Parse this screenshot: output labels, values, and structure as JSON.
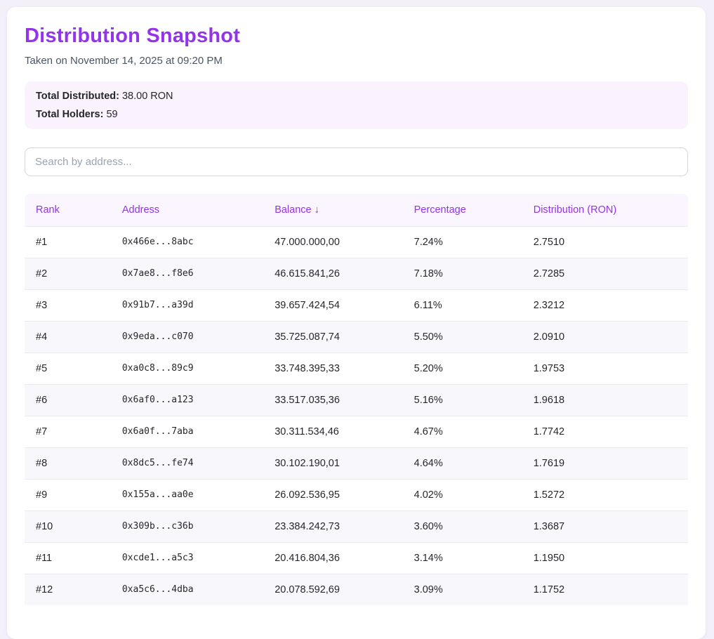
{
  "page": {
    "title": "Distribution Snapshot",
    "subtitle": "Taken on November 14, 2025 at 09:20 PM"
  },
  "summary": {
    "total_distributed_label": "Total Distributed:",
    "total_distributed_value": "38.00 RON",
    "total_holders_label": "Total Holders:",
    "total_holders_value": "59"
  },
  "search": {
    "placeholder": "Search by address...",
    "value": ""
  },
  "table": {
    "columns": [
      "Rank",
      "Address",
      "Balance ↓",
      "Percentage",
      "Distribution (RON)"
    ],
    "sorted_column": "Balance",
    "sort_direction": "descending",
    "rows": [
      {
        "rank": "#1",
        "address": "0x466e...8abc",
        "balance": "47.000.000,00",
        "percentage": "7.24%",
        "distribution": "2.7510"
      },
      {
        "rank": "#2",
        "address": "0x7ae8...f8e6",
        "balance": "46.615.841,26",
        "percentage": "7.18%",
        "distribution": "2.7285"
      },
      {
        "rank": "#3",
        "address": "0x91b7...a39d",
        "balance": "39.657.424,54",
        "percentage": "6.11%",
        "distribution": "2.3212"
      },
      {
        "rank": "#4",
        "address": "0x9eda...c070",
        "balance": "35.725.087,74",
        "percentage": "5.50%",
        "distribution": "2.0910"
      },
      {
        "rank": "#5",
        "address": "0xa0c8...89c9",
        "balance": "33.748.395,33",
        "percentage": "5.20%",
        "distribution": "1.9753"
      },
      {
        "rank": "#6",
        "address": "0x6af0...a123",
        "balance": "33.517.035,36",
        "percentage": "5.16%",
        "distribution": "1.9618"
      },
      {
        "rank": "#7",
        "address": "0x6a0f...7aba",
        "balance": "30.311.534,46",
        "percentage": "4.67%",
        "distribution": "1.7742"
      },
      {
        "rank": "#8",
        "address": "0x8dc5...fe74",
        "balance": "30.102.190,01",
        "percentage": "4.64%",
        "distribution": "1.7619"
      },
      {
        "rank": "#9",
        "address": "0x155a...aa0e",
        "balance": "26.092.536,95",
        "percentage": "4.02%",
        "distribution": "1.5272"
      },
      {
        "rank": "#10",
        "address": "0x309b...c36b",
        "balance": "23.384.242,73",
        "percentage": "3.60%",
        "distribution": "1.3687"
      },
      {
        "rank": "#11",
        "address": "0xcde1...a5c3",
        "balance": "20.416.804,36",
        "percentage": "3.14%",
        "distribution": "1.1950"
      },
      {
        "rank": "#12",
        "address": "0xa5c6...4dba",
        "balance": "20.078.592,69",
        "percentage": "3.09%",
        "distribution": "1.1752"
      }
    ]
  },
  "colors": {
    "accent_purple": "#9333ea",
    "page_background": "#f3f0fa",
    "card_background": "#ffffff",
    "summary_box_background": "#faf2fc",
    "table_header_background": "#faf5fe",
    "row_stripe": "#f8f7fb"
  }
}
